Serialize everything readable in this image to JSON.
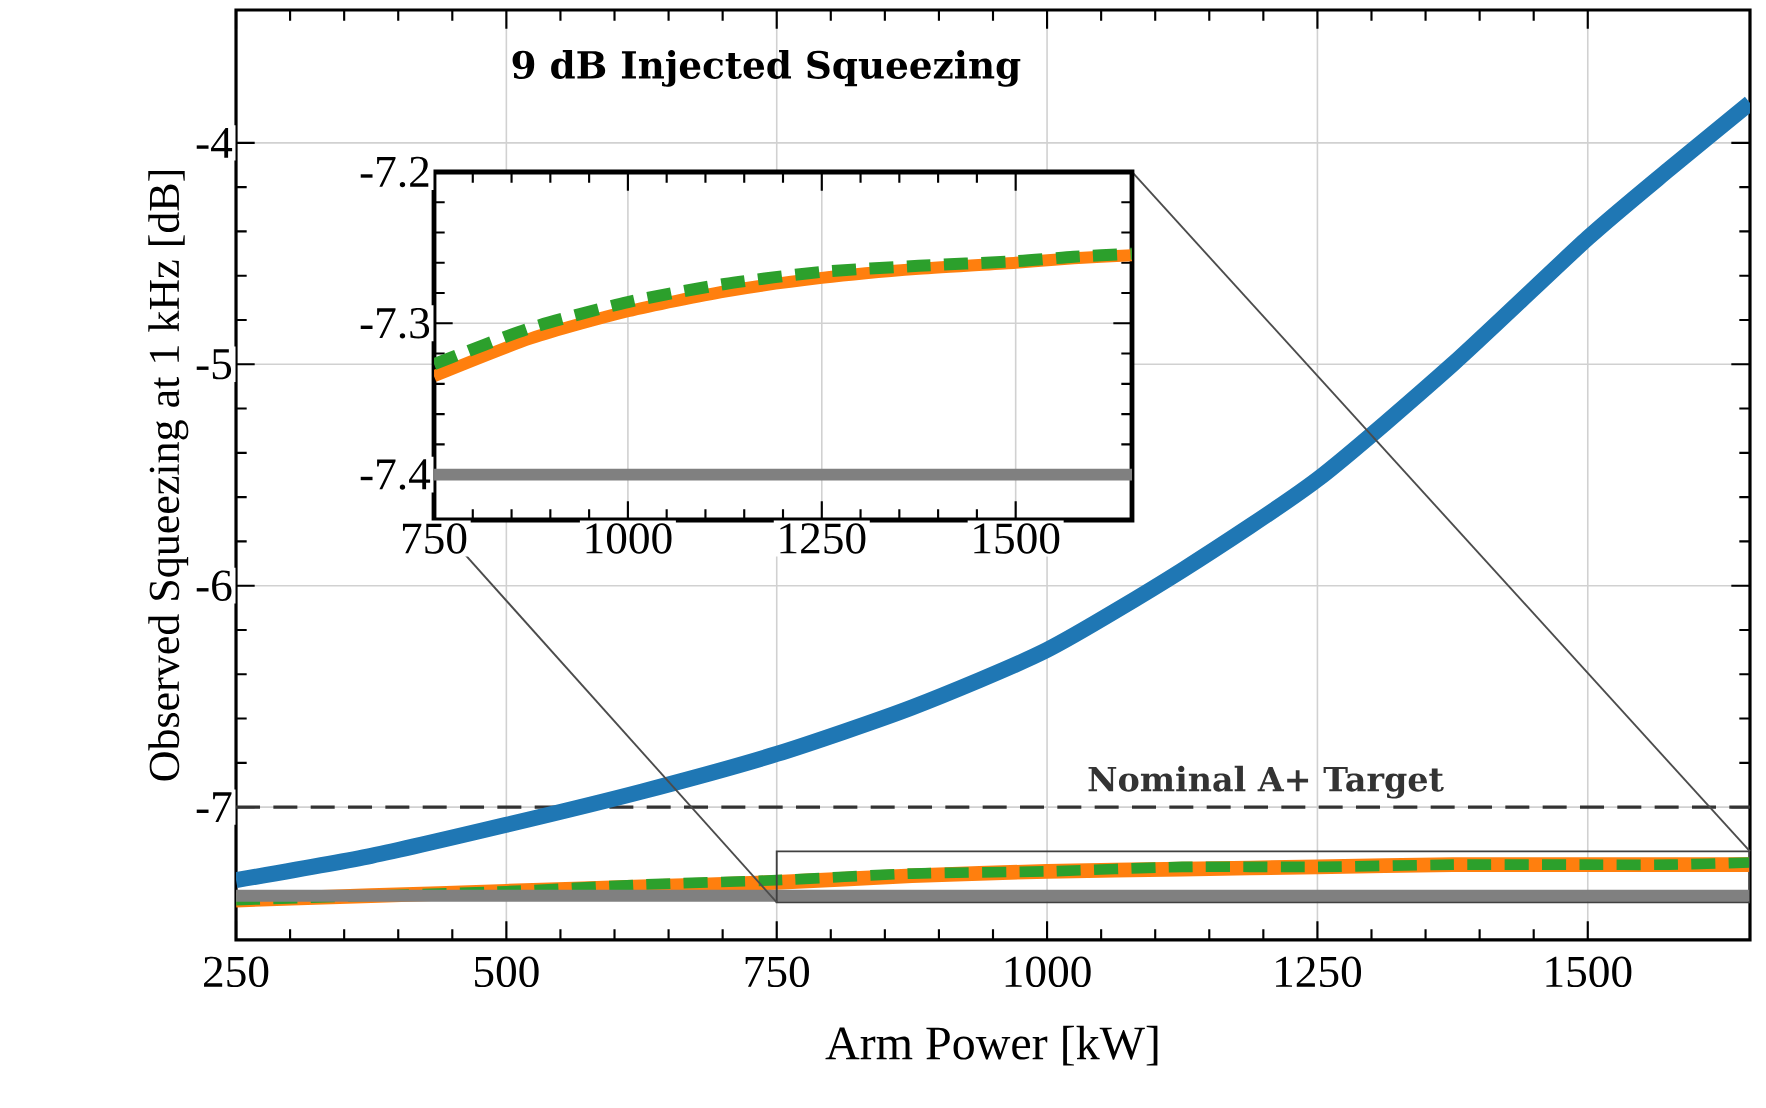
{
  "chart_data": [
    {
      "type": "line",
      "title": "9 dB Injected Squeezing",
      "xlabel": "Arm Power [kW]",
      "ylabel": "Observed Squeezing at 1 kHz [dB]",
      "x": [
        250,
        375,
        500,
        625,
        750,
        875,
        1000,
        1125,
        1250,
        1375,
        1500,
        1575,
        1650
      ],
      "series": [
        {
          "color": "#1f77b4",
          "line_style": "solid",
          "values": [
            -7.33,
            -7.22,
            -7.08,
            -6.93,
            -6.76,
            -6.55,
            -6.29,
            -5.93,
            -5.52,
            -5.0,
            -4.43,
            -4.12,
            -3.82
          ]
        },
        {
          "color": "#ff7f0e",
          "line_style": "solid",
          "values": [
            -7.42,
            -7.4,
            -7.38,
            -7.36,
            -7.34,
            -7.31,
            -7.29,
            -7.28,
            -7.27,
            -7.26,
            -7.26,
            -7.26,
            -7.26
          ]
        },
        {
          "color": "#2ca02c",
          "line_style": "dashed",
          "values": [
            -7.42,
            -7.4,
            -7.38,
            -7.35,
            -7.33,
            -7.3,
            -7.29,
            -7.27,
            -7.27,
            -7.26,
            -7.26,
            -7.26,
            -7.25
          ]
        },
        {
          "color": "#808080",
          "line_style": "solid",
          "values": [
            -7.4,
            -7.4,
            -7.4,
            -7.4,
            -7.4,
            -7.4,
            -7.4,
            -7.4,
            -7.4,
            -7.4,
            -7.4,
            -7.4,
            -7.4
          ]
        }
      ],
      "xlim": [
        250,
        1650
      ],
      "ylim": [
        -7.6,
        -3.4
      ],
      "xticks": [
        250,
        500,
        750,
        1000,
        1250,
        1500
      ],
      "yticks": [
        -7,
        -6,
        -5,
        -4
      ],
      "grid": true,
      "ref_lines": [
        {
          "axis": "y",
          "value": -7,
          "label": "Nominal A+ Target",
          "color": "#333333",
          "line_style": "dashed"
        }
      ]
    },
    {
      "type": "line",
      "x": [
        750,
        875,
        1000,
        1125,
        1250,
        1375,
        1500,
        1575,
        1650
      ],
      "series": [
        {
          "color": "#ff7f0e",
          "line_style": "solid",
          "values": [
            -7.335,
            -7.31,
            -7.292,
            -7.279,
            -7.27,
            -7.264,
            -7.26,
            -7.257,
            -7.255
          ]
        },
        {
          "color": "#2ca02c",
          "line_style": "dashed",
          "values": [
            -7.327,
            -7.303,
            -7.286,
            -7.274,
            -7.266,
            -7.262,
            -7.259,
            -7.256,
            -7.254
          ]
        },
        {
          "color": "#808080",
          "line_style": "solid",
          "values": [
            -7.4,
            -7.4,
            -7.4,
            -7.4,
            -7.4,
            -7.4,
            -7.4,
            -7.4,
            -7.4
          ]
        }
      ],
      "xlim": [
        750,
        1650
      ],
      "ylim": [
        -7.43,
        -7.2
      ],
      "xticks": [
        750,
        1000,
        1250,
        1500
      ],
      "yticks": [
        -7.4,
        -7.3,
        -7.2
      ],
      "grid": true
    }
  ]
}
